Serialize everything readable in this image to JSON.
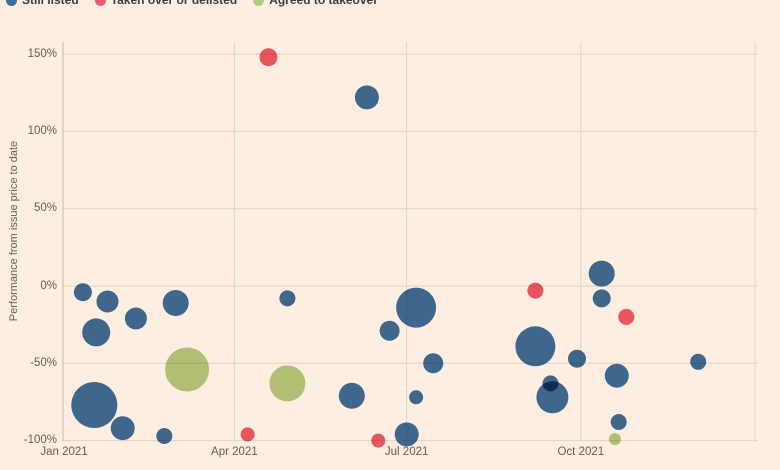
{
  "legend": {
    "items": [
      {
        "key": "still_listed",
        "label": "Still listed",
        "color": "#3f6d9d"
      },
      {
        "key": "taken_over",
        "label": "Taken over or delisted",
        "color": "#ea5c69"
      },
      {
        "key": "agreed",
        "label": "Agreed to takeover",
        "color": "#b4cc82"
      }
    ]
  },
  "y_axis": {
    "title": "Performance from issue price to date",
    "tick_values": [
      150,
      100,
      50,
      0,
      -50,
      -100
    ],
    "tick_labels": [
      "150%",
      "100%",
      "50%",
      "0%",
      "-50%",
      "-100%"
    ]
  },
  "x_axis": {
    "tick_labels": [
      "Jan 2021",
      "Apr 2021",
      "Jul 2021",
      "Oct 2021"
    ],
    "tick_dates": [
      "2021-01-01",
      "2021-04-01",
      "2021-07-01",
      "2021-10-01"
    ],
    "grid_dates": [
      "2021-04-01",
      "2021-07-01",
      "2021-10-01",
      "2022-01-01"
    ]
  },
  "colors": {
    "background": "#fdeee2",
    "grid": "#e3d2c2",
    "axis": "#c7b6a6",
    "tick_text": "#6d5c4e",
    "legend_text": "#3d3d3d",
    "still_listed": "#3f6d9d",
    "taken_over": "#ea5c69",
    "agreed": "#b4cc82"
  },
  "chart_data": {
    "type": "scatter",
    "title": "",
    "xlabel": "",
    "ylabel": "Performance from issue price to date",
    "ylim": [
      -105,
      155
    ],
    "x_range": [
      "2021-01-01",
      "2022-01-01"
    ],
    "grid": true,
    "legend_position": "top-left",
    "series": [
      {
        "name": "Still listed",
        "color": "#3f6d9d",
        "points": [
          {
            "date": "2021-01-11",
            "value": -4,
            "r": 9
          },
          {
            "date": "2021-01-18",
            "value": -30,
            "r": 14
          },
          {
            "date": "2021-01-17",
            "value": -77,
            "r": 23
          },
          {
            "date": "2021-01-24",
            "value": -10,
            "r": 11
          },
          {
            "date": "2021-02-01",
            "value": -92,
            "r": 12
          },
          {
            "date": "2021-02-08",
            "value": -21,
            "r": 11
          },
          {
            "date": "2021-02-23",
            "value": -97,
            "r": 8
          },
          {
            "date": "2021-03-01",
            "value": -11,
            "r": 13
          },
          {
            "date": "2021-04-29",
            "value": -8,
            "r": 8
          },
          {
            "date": "2021-06-02",
            "value": -71,
            "r": 13
          },
          {
            "date": "2021-06-10",
            "value": 122,
            "r": 12
          },
          {
            "date": "2021-06-22",
            "value": -29,
            "r": 10
          },
          {
            "date": "2021-07-01",
            "value": -96,
            "r": 12
          },
          {
            "date": "2021-07-06",
            "value": -14,
            "r": 20
          },
          {
            "date": "2021-07-06",
            "value": -72,
            "r": 7
          },
          {
            "date": "2021-07-15",
            "value": -50,
            "r": 10
          },
          {
            "date": "2021-09-07",
            "value": -39,
            "r": 20
          },
          {
            "date": "2021-09-15",
            "value": -63,
            "r": 8
          },
          {
            "date": "2021-09-16",
            "value": -72,
            "r": 16
          },
          {
            "date": "2021-09-29",
            "value": -47,
            "r": 9
          },
          {
            "date": "2021-10-12",
            "value": 8,
            "r": 13
          },
          {
            "date": "2021-10-12",
            "value": -8,
            "r": 9
          },
          {
            "date": "2021-10-20",
            "value": -58,
            "r": 12
          },
          {
            "date": "2021-10-21",
            "value": -88,
            "r": 8
          },
          {
            "date": "2021-12-02",
            "value": -49,
            "r": 8
          }
        ]
      },
      {
        "name": "Taken over or delisted",
        "color": "#ea5c69",
        "points": [
          {
            "date": "2021-04-08",
            "value": -96,
            "r": 7
          },
          {
            "date": "2021-04-19",
            "value": 148,
            "r": 9
          },
          {
            "date": "2021-06-16",
            "value": -100,
            "r": 7
          },
          {
            "date": "2021-09-07",
            "value": -3,
            "r": 8
          },
          {
            "date": "2021-10-25",
            "value": -20,
            "r": 8
          }
        ]
      },
      {
        "name": "Agreed to takeover",
        "color": "#b4cc82",
        "points": [
          {
            "date": "2021-03-07",
            "value": -54,
            "r": 22
          },
          {
            "date": "2021-04-29",
            "value": -63,
            "r": 18
          },
          {
            "date": "2021-10-19",
            "value": -99,
            "r": 6
          }
        ]
      }
    ]
  }
}
